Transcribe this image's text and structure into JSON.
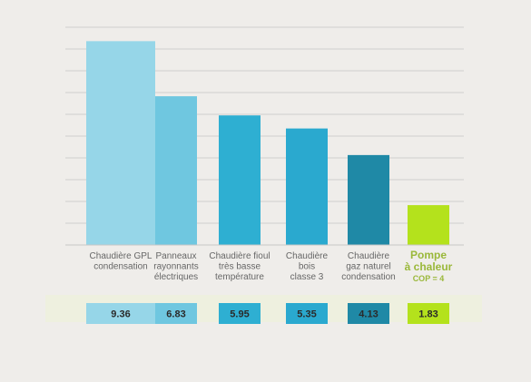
{
  "chart_data": {
    "type": "bar",
    "title": "",
    "xlabel": "",
    "ylabel": "",
    "ylim": [
      0,
      10
    ],
    "grid": true,
    "categories": [
      [
        "Chaudière GPL",
        "condensation"
      ],
      [
        "Panneaux",
        "rayonnants",
        "électriques"
      ],
      [
        "Chaudière fioul",
        "très basse",
        "température"
      ],
      [
        "Chaudière",
        "bois",
        "classe 3"
      ],
      [
        "Chaudière",
        "gaz naturel",
        "condensation"
      ],
      [
        "Pompe",
        "à chaleur"
      ]
    ],
    "highlight_sublabel": "COP = 4",
    "values": [
      9.36,
      6.83,
      5.95,
      5.35,
      4.13,
      1.83
    ],
    "value_labels": [
      "9.36",
      "6.83",
      "5.95",
      "5.35",
      "4.13",
      "1.83"
    ],
    "colors": [
      "#96d6e8",
      "#6fc7e0",
      "#2eafd2",
      "#2aa9cf",
      "#1f89a6",
      "#b4e21c"
    ],
    "highlight_index": 5
  }
}
